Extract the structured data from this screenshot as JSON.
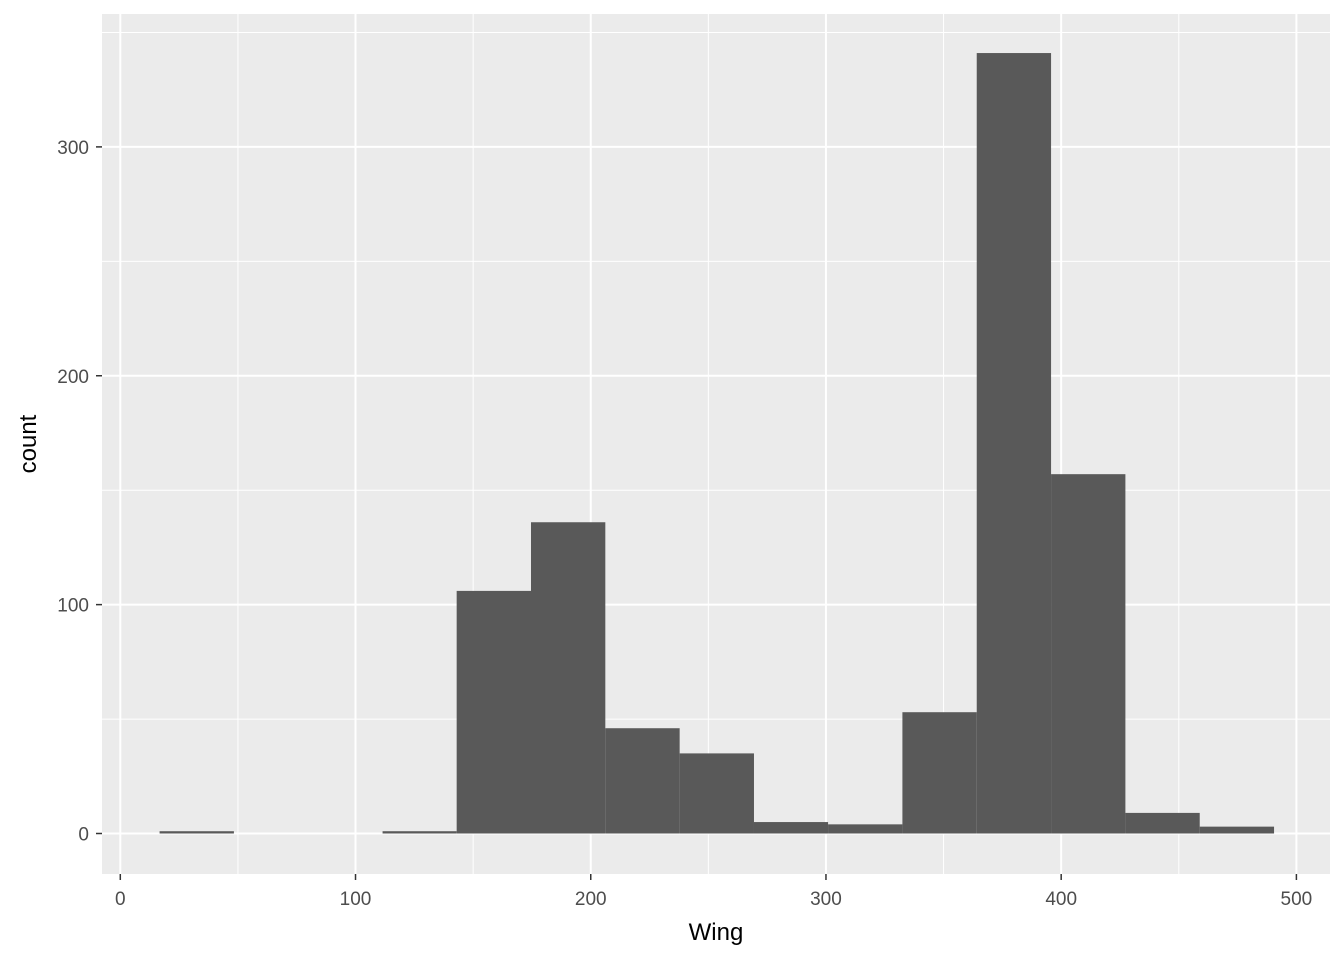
{
  "chart_data": {
    "type": "bar",
    "title": "",
    "xlabel": "Wing",
    "ylabel": "count",
    "xlim": [
      0,
      500
    ],
    "ylim": [
      0,
      300
    ],
    "grid": true,
    "x_ticks": [
      0,
      100,
      200,
      300,
      400,
      500
    ],
    "y_ticks": [
      0,
      100,
      200,
      300
    ],
    "bins": [
      {
        "x0": 16.7,
        "x1": 48.3,
        "count": 1
      },
      {
        "x0": 48.3,
        "x1": 79.9,
        "count": 0
      },
      {
        "x0": 79.9,
        "x1": 111.5,
        "count": 0
      },
      {
        "x0": 111.5,
        "x1": 143.0,
        "count": 1
      },
      {
        "x0": 143.0,
        "x1": 174.6,
        "count": 106
      },
      {
        "x0": 174.6,
        "x1": 206.2,
        "count": 136
      },
      {
        "x0": 206.2,
        "x1": 237.8,
        "count": 46
      },
      {
        "x0": 237.8,
        "x1": 269.4,
        "count": 35
      },
      {
        "x0": 269.4,
        "x1": 300.9,
        "count": 5
      },
      {
        "x0": 300.9,
        "x1": 332.5,
        "count": 4
      },
      {
        "x0": 332.5,
        "x1": 364.1,
        "count": 53
      },
      {
        "x0": 364.1,
        "x1": 395.7,
        "count": 341
      },
      {
        "x0": 395.7,
        "x1": 427.3,
        "count": 157
      },
      {
        "x0": 427.3,
        "x1": 458.9,
        "count": 9
      },
      {
        "x0": 458.9,
        "x1": 490.5,
        "count": 3
      }
    ],
    "colors": {
      "panel_background": "#ebebeb",
      "grid": "#ffffff",
      "bar_fill": "#595959",
      "tick_text": "#4d4d4d",
      "tick_mark": "#333333"
    }
  }
}
